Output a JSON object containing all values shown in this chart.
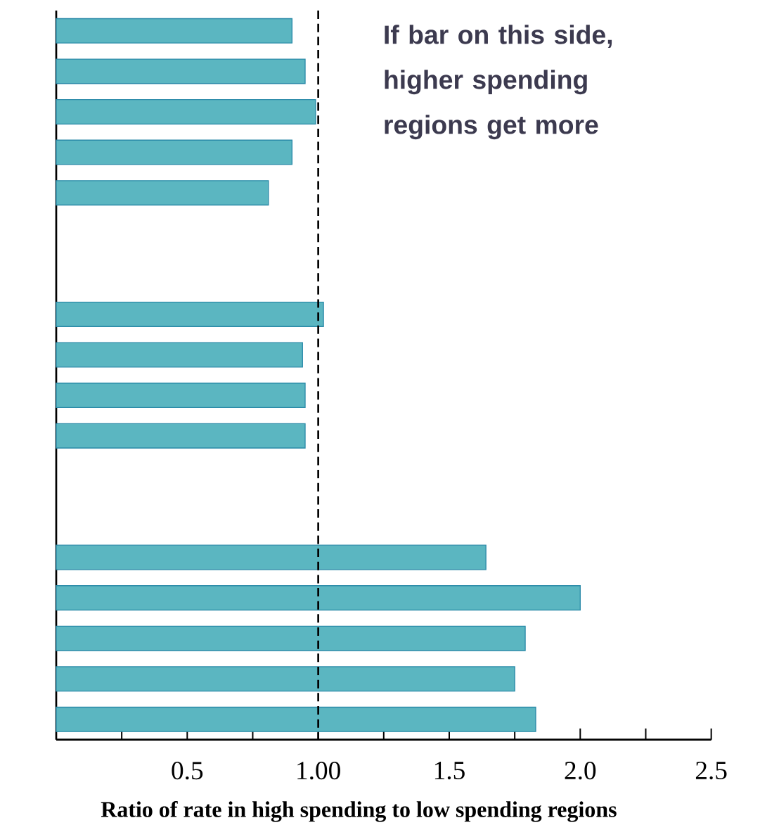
{
  "chart_data": {
    "type": "bar",
    "orientation": "horizontal",
    "xlabel": "Ratio of rate in high spending to low spending regions",
    "annotations": [
      "If bar on this side, higher spending regions get more"
    ],
    "categories": [
      null,
      null,
      null,
      null,
      null,
      null,
      null,
      null,
      null,
      null,
      null,
      null,
      null,
      null,
      null,
      null,
      null,
      null
    ],
    "values": [
      0.9,
      0.95,
      0.99,
      0.9,
      0.81,
      null,
      null,
      1.02,
      0.94,
      0.95,
      0.95,
      null,
      null,
      1.64,
      2.0,
      1.79,
      1.75,
      1.83
    ],
    "color": "#5bb6c1",
    "xlim": [
      0,
      2.5
    ],
    "xticks": [
      {
        "value": 0.25,
        "label": null
      },
      0.5,
      {
        "value": 0.75,
        "label": null
      },
      {
        "value": 1,
        "label": "1.00"
      },
      {
        "value": 1.25,
        "label": null
      },
      1.5,
      {
        "value": 1.75,
        "label": null
      },
      {
        "value": 2,
        "label": "2.0"
      },
      {
        "value": 2.25,
        "label": null
      },
      2.5
    ],
    "ref_lines": [
      {
        "axis": "x",
        "value": 1,
        "line_style": "dashed",
        "color": "#000000"
      }
    ]
  }
}
